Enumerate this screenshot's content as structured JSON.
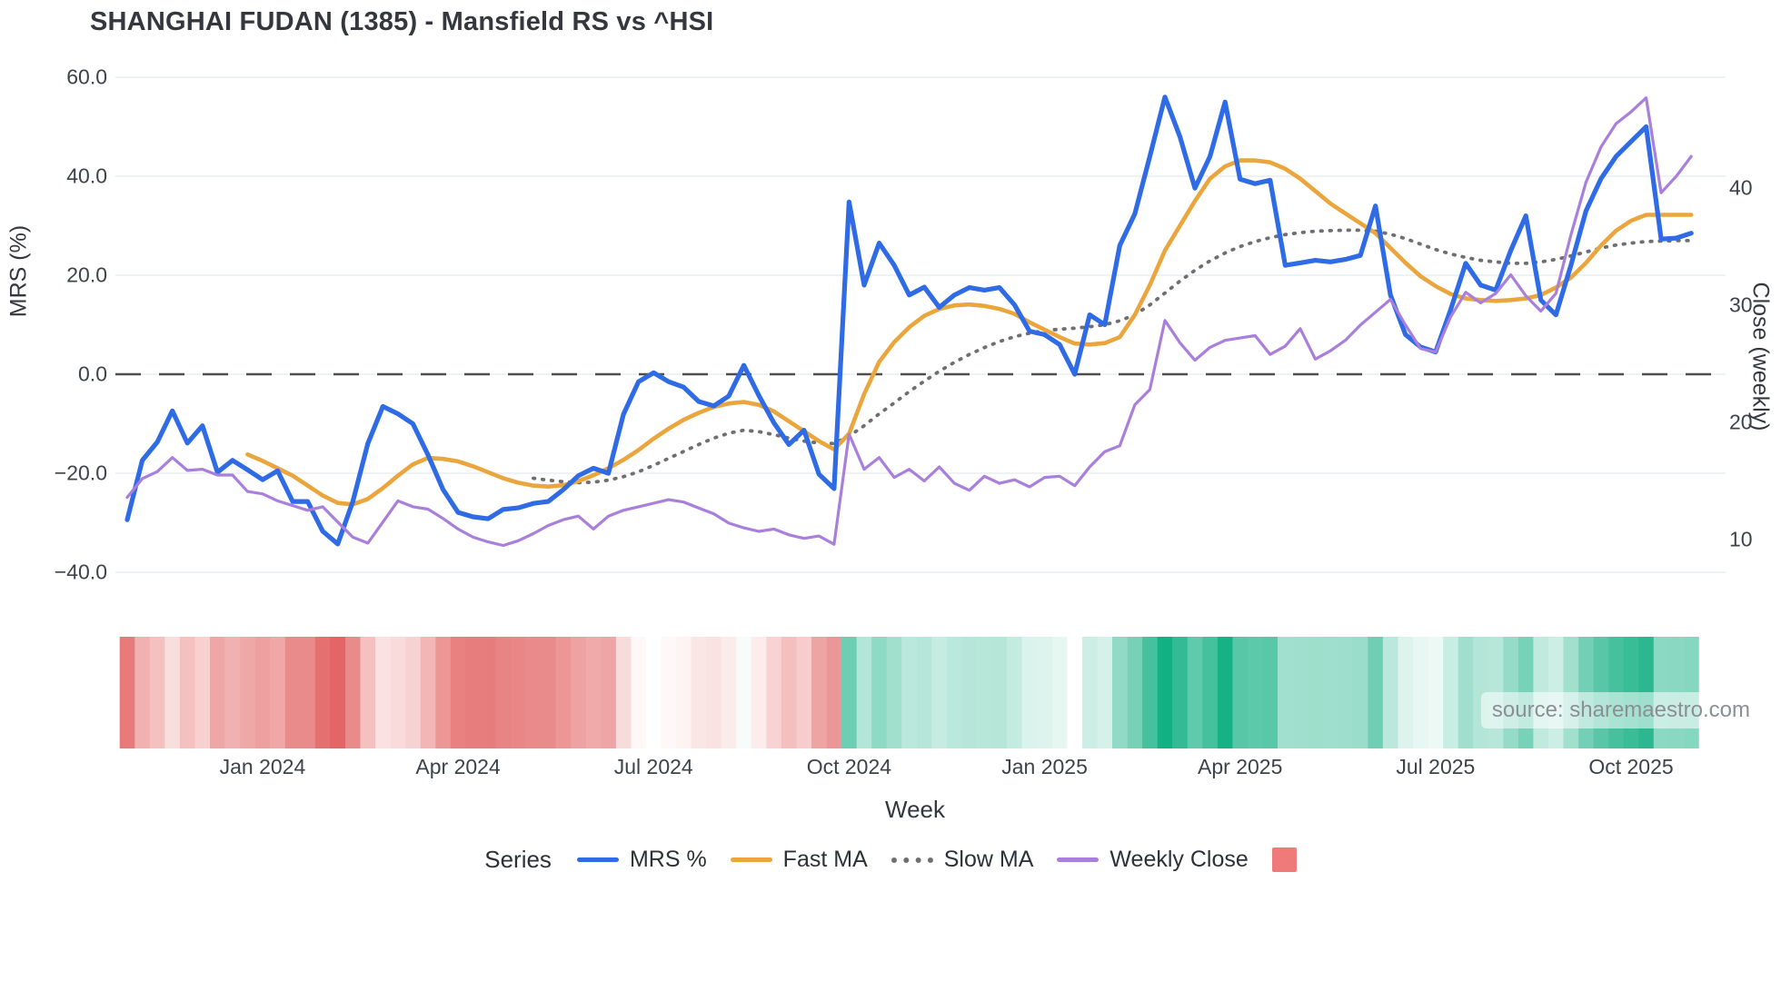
{
  "title": "SHANGHAI FUDAN (1385) - Mansfield RS vs ^HSI",
  "source_label": "source: sharemaestro.com",
  "axes": {
    "left": {
      "title": "MRS (%)",
      "tick_labels": [
        "60.0",
        "40.0",
        "20.0",
        "0.0",
        "−20.0",
        "−40.0"
      ],
      "tick_values": [
        60,
        40,
        20,
        0,
        -20,
        -40
      ]
    },
    "right": {
      "title": "Close (weekly)",
      "tick_labels": [
        "40",
        "30",
        "20",
        "10"
      ],
      "tick_values": [
        40,
        30,
        20,
        10
      ]
    },
    "x": {
      "title": "Week",
      "tick_labels": [
        "Jan 2024",
        "Apr 2024",
        "Jul 2024",
        "Oct 2024",
        "Jan 2025",
        "Apr 2025",
        "Jul 2025",
        "Oct 2025"
      ],
      "tick_week_index": [
        9,
        22,
        35,
        48,
        61,
        74,
        87,
        100
      ]
    }
  },
  "legend": {
    "series_label": "Series",
    "items": [
      {
        "label": "MRS %",
        "style": "line",
        "color": "#2e6be5"
      },
      {
        "label": "Fast MA",
        "style": "line",
        "color": "#eaa63c"
      },
      {
        "label": "Slow MA",
        "style": "dotted",
        "color": "#6e6e73"
      },
      {
        "label": "Weekly Close",
        "style": "line",
        "color": "#a97fdc"
      },
      {
        "label": "",
        "style": "square",
        "color": "#ee7a7a"
      }
    ]
  },
  "colors": {
    "grid": "#e9edf2",
    "zero_line": "#4d4d4d",
    "mrs": "#2e6be5",
    "fast_ma": "#eaa63c",
    "slow_ma": "#6e6e73",
    "close": "#a97fdc",
    "heat_negative": "#e25d5d",
    "heat_positive": "#12b083",
    "heat_neutral": "#ffffff"
  },
  "chart_data": {
    "type": "line",
    "title": "SHANGHAI FUDAN (1385) - Mansfield RS vs ^HSI",
    "xlabel": "Week",
    "ylabel_left": "MRS (%)",
    "ylabel_right": "Close (weekly)",
    "x_tick_labels": [
      "Jan 2024",
      "Apr 2024",
      "Jul 2024",
      "Oct 2024",
      "Jan 2025",
      "Apr 2025",
      "Jul 2025",
      "Oct 2025"
    ],
    "ylim_left": [
      -40,
      60
    ],
    "ylim_right_ticks": [
      10,
      40
    ],
    "grid": true,
    "legend_position": "bottom",
    "n_weeks": 105,
    "series": [
      {
        "name": "MRS %",
        "axis": "left",
        "values": [
          -29.4,
          -17.4,
          -13.7,
          -7.4,
          -13.9,
          -10.4,
          -19.8,
          -17.4,
          -19.3,
          -21.3,
          -19.5,
          -25.7,
          -25.7,
          -31.7,
          -34.3,
          -25.7,
          -14,
          -6.5,
          -8,
          -10,
          -16.3,
          -23.3,
          -27.9,
          -28.8,
          -29.2,
          -27.3,
          -27,
          -26.1,
          -25.7,
          -23.3,
          -20.5,
          -19,
          -20,
          -8.1,
          -1.5,
          0.3,
          -1.5,
          -2.6,
          -5.5,
          -6.4,
          -4.4,
          1.8,
          -4.3,
          -9.8,
          -14.2,
          -11.3,
          -20.2,
          -23.1,
          34.8,
          18,
          26.5,
          22,
          16,
          17.6,
          13.5,
          16,
          17.5,
          17,
          17.5,
          14,
          8.7,
          8,
          6,
          0,
          12,
          10,
          26,
          32.4,
          44,
          56,
          48,
          37.6,
          44,
          55,
          39.4,
          38.5,
          39.2,
          22,
          22.5,
          23,
          22.7,
          23.2,
          24,
          34,
          16,
          8,
          5.5,
          4.5,
          13,
          22.4,
          18,
          17,
          25,
          32,
          15,
          12,
          22,
          33,
          39.5,
          44,
          47,
          50,
          27.3,
          27.5,
          28.5
        ]
      },
      {
        "name": "Fast MA",
        "axis": "left",
        "values": [
          null,
          null,
          null,
          null,
          null,
          null,
          null,
          null,
          -16.2,
          -17.5,
          -19,
          -20.5,
          -22.5,
          -24.5,
          -26,
          -26.3,
          -25.2,
          -23,
          -20.5,
          -18.2,
          -16.9,
          -17.1,
          -17.6,
          -18.6,
          -19.8,
          -21,
          -21.9,
          -22.5,
          -22.7,
          -22.4,
          -21.6,
          -20.4,
          -19,
          -17.3,
          -15.3,
          -13,
          -11,
          -9.2,
          -7.8,
          -6.6,
          -5.9,
          -5.6,
          -6.2,
          -7.5,
          -9.5,
          -11.5,
          -13.5,
          -15.2,
          -12,
          -4,
          2.5,
          6.5,
          9.5,
          11.8,
          13.2,
          13.9,
          14.1,
          13.8,
          13.2,
          12.2,
          10.5,
          9,
          7.5,
          6.2,
          6,
          6.3,
          7.5,
          12,
          18,
          25,
          30,
          35,
          39.5,
          42,
          43.2,
          43.2,
          42.8,
          41.5,
          39.5,
          37,
          34.5,
          32.5,
          30.5,
          28.5,
          25.5,
          22.5,
          19.8,
          17.8,
          16.2,
          15.3,
          15,
          14.8,
          15,
          15.3,
          16,
          17.5,
          19.5,
          22.5,
          26,
          29,
          31,
          32.2,
          32.2,
          32.2,
          32.2
        ]
      },
      {
        "name": "Slow MA",
        "axis": "left",
        "values": [
          null,
          null,
          null,
          null,
          null,
          null,
          null,
          null,
          null,
          null,
          null,
          null,
          null,
          null,
          null,
          null,
          null,
          null,
          null,
          null,
          null,
          null,
          null,
          null,
          null,
          null,
          null,
          -21,
          -21.4,
          -21.7,
          -21.9,
          -21.8,
          -21.4,
          -20.7,
          -19.7,
          -18.4,
          -17,
          -15.6,
          -14.2,
          -12.9,
          -11.9,
          -11.3,
          -11.6,
          -12.2,
          -12.9,
          -13.5,
          -13.9,
          -14,
          -12.5,
          -10.4,
          -8,
          -5.8,
          -3.5,
          -1.4,
          0.6,
          2.4,
          4,
          5.4,
          6.6,
          7.6,
          8.3,
          8.8,
          9.1,
          9.3,
          9.6,
          10,
          10.8,
          12,
          14,
          16.4,
          18.8,
          21,
          22.9,
          24.5,
          25.8,
          26.8,
          27.6,
          28.2,
          28.6,
          28.9,
          29,
          29.1,
          29.1,
          28.9,
          28.3,
          27.4,
          26.3,
          25.2,
          24.3,
          23.6,
          23,
          22.7,
          22.4,
          22.4,
          22.7,
          23.2,
          23.9,
          24.7,
          25.5,
          26.1,
          26.5,
          26.8,
          26.9,
          27,
          27
        ]
      },
      {
        "name": "Weekly Close",
        "axis": "right",
        "values": [
          13.6,
          15.2,
          15.8,
          17,
          15.9,
          16,
          15.5,
          15.5,
          14.1,
          13.9,
          13.3,
          12.9,
          12.5,
          12.8,
          11.5,
          10.2,
          9.7,
          11.5,
          13.3,
          12.8,
          12.6,
          11.8,
          10.9,
          10.2,
          9.8,
          9.5,
          9.9,
          10.5,
          11.2,
          11.7,
          12,
          10.9,
          12,
          12.5,
          12.8,
          13.1,
          13.4,
          13.2,
          12.7,
          12.2,
          11.4,
          11,
          10.7,
          10.9,
          10.4,
          10.1,
          10.3,
          9.6,
          19,
          16,
          17,
          15.3,
          16,
          15,
          16.2,
          14.8,
          14.2,
          15.4,
          14.8,
          15.1,
          14.5,
          15.3,
          15.4,
          14.6,
          16.2,
          17.5,
          18,
          21.5,
          22.8,
          28.7,
          26.8,
          25.3,
          26.4,
          27,
          27.2,
          27.4,
          25.8,
          26.5,
          28,
          25.4,
          26.1,
          27,
          28.3,
          29.4,
          30.5,
          28.3,
          26.3,
          26,
          29,
          31.1,
          30.2,
          31,
          32.6,
          30.8,
          29.5,
          31,
          36,
          40.5,
          43.5,
          45.5,
          46.5,
          47.7,
          39.6,
          41,
          42.7
        ]
      }
    ],
    "heatmap_strip": {
      "description": "one cell per week colored by MRS % sign and magnitude (red negative, green positive)",
      "derived_from": "MRS %"
    }
  }
}
